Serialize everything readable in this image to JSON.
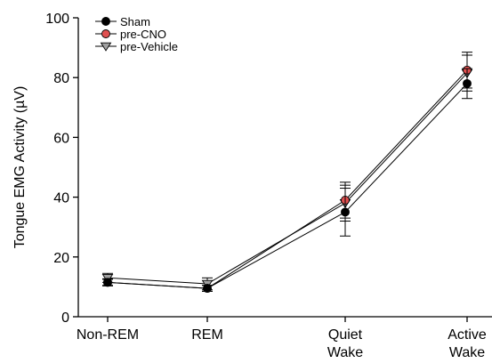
{
  "chart_data": {
    "type": "line",
    "title": "",
    "xlabel": "",
    "ylabel": "Tongue EMG Activity (µV)",
    "ylim": [
      0,
      100
    ],
    "yticks": [
      0,
      20,
      40,
      60,
      80,
      100
    ],
    "categories": [
      {
        "line1": "Non-REM",
        "line2": ""
      },
      {
        "line1": "REM",
        "line2": ""
      },
      {
        "line1": "Quiet",
        "line2": "Wake"
      },
      {
        "line1": "Active",
        "line2": "Wake"
      }
    ],
    "legend_position": "top-left",
    "series": [
      {
        "name": "Sham",
        "marker": "circle",
        "fill": "#000000",
        "values": [
          11.5,
          9.5,
          35,
          78
        ],
        "errors": [
          1.2,
          1.0,
          8,
          5
        ]
      },
      {
        "name": "pre-CNO",
        "marker": "circle",
        "fill": "#e05050",
        "values": [
          11.5,
          9.5,
          39,
          82.5
        ],
        "errors": [
          1.0,
          1.0,
          6,
          6
        ]
      },
      {
        "name": "pre-Vehicle",
        "marker": "triangle-down",
        "fill": "#a0a0a0",
        "values": [
          13,
          11,
          38,
          81.5
        ],
        "errors": [
          1.5,
          2.0,
          6,
          6
        ]
      }
    ]
  }
}
